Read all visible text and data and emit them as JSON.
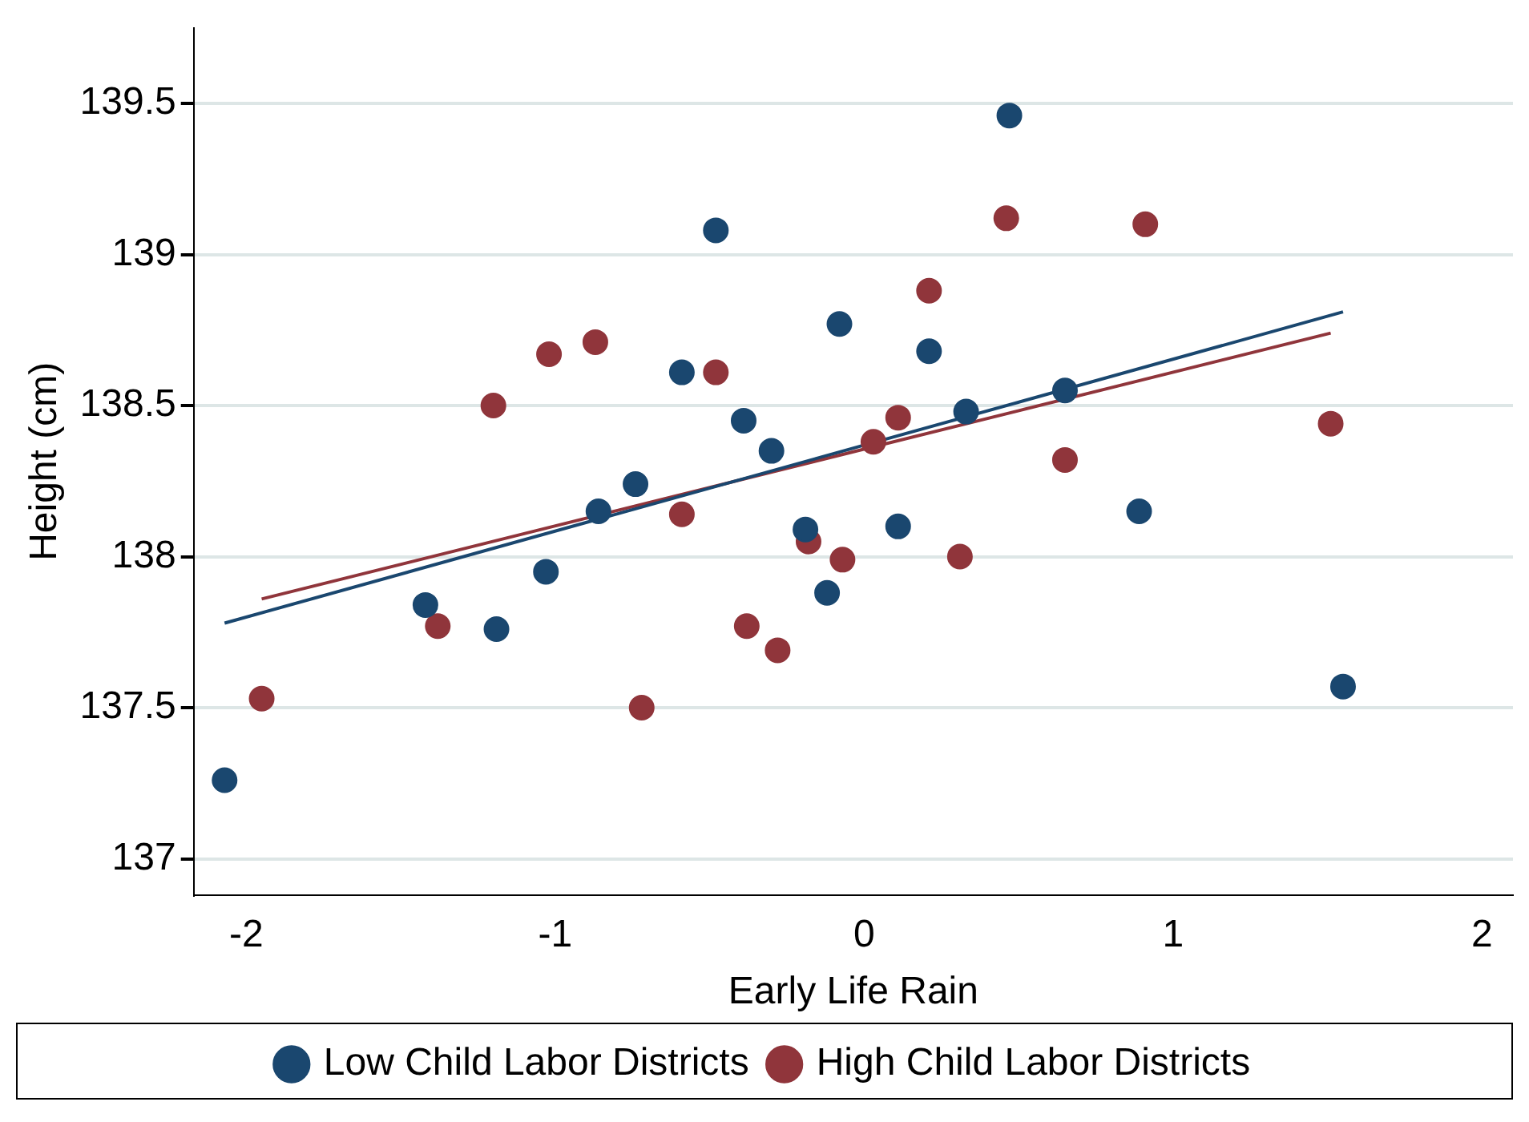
{
  "chart_data": {
    "type": "scatter",
    "xlabel": "Early Life Rain",
    "ylabel": "Height (cm)",
    "xlim": [
      -2.17,
      2.1
    ],
    "xticks": [
      -2,
      -1,
      0,
      1,
      2
    ],
    "ylim": [
      136.88,
      139.75
    ],
    "yticks": [
      137,
      137.5,
      138,
      138.5,
      139,
      139.5
    ],
    "grid": "y",
    "legend": "bottom",
    "series": [
      {
        "name": "Low Child Labor Districts",
        "color": "#1a476f",
        "marker": "circle",
        "x": [
          -2.07,
          -1.42,
          -1.19,
          -1.03,
          -0.86,
          -0.74,
          -0.59,
          -0.48,
          -0.39,
          -0.3,
          -0.19,
          -0.08,
          -0.12,
          0.11,
          0.21,
          0.33,
          0.47,
          0.65,
          0.89,
          1.55
        ],
        "values": [
          137.26,
          137.84,
          137.76,
          137.95,
          138.15,
          138.24,
          138.61,
          139.08,
          138.45,
          138.35,
          138.09,
          138.77,
          137.88,
          138.1,
          138.68,
          138.48,
          139.46,
          138.55,
          138.15,
          137.57
        ]
      },
      {
        "name": "High Child Labor Districts",
        "color": "#90353b",
        "marker": "circle",
        "x": [
          -1.95,
          -1.38,
          -1.2,
          -1.02,
          -0.87,
          -0.72,
          -0.59,
          -0.48,
          -0.38,
          -0.28,
          -0.18,
          -0.07,
          0.03,
          0.11,
          0.21,
          0.31,
          0.46,
          0.65,
          0.91,
          1.51
        ],
        "values": [
          137.53,
          137.77,
          138.5,
          138.67,
          138.71,
          137.5,
          138.14,
          138.61,
          137.77,
          137.69,
          138.05,
          137.99,
          138.38,
          138.46,
          138.88,
          138,
          139.12,
          138.32,
          139.1,
          138.44
        ]
      },
      {
        "type": "line",
        "marker": "none",
        "color": "#1a476f",
        "x": [
          -2.07,
          1.55
        ],
        "values": [
          137.78,
          138.81
        ]
      },
      {
        "type": "line",
        "marker": "none",
        "color": "#90353b",
        "x": [
          -1.95,
          1.51
        ],
        "values": [
          137.86,
          138.74
        ]
      }
    ]
  }
}
